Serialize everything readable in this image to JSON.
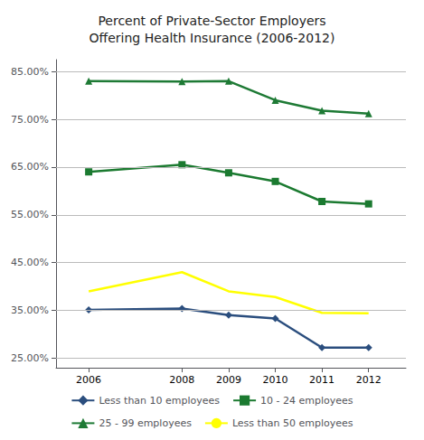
{
  "chart_data": {
    "type": "line",
    "title": "Percent of Private-Sector Employers\nOffering Health Insurance (2006-2012)",
    "x": [
      2006,
      2008,
      2009,
      2010,
      2011,
      2012
    ],
    "series": [
      {
        "name": "Less than 10 employees",
        "color": "#2B4E7E",
        "marker": "diamond",
        "values": [
          0.351,
          0.354,
          0.34,
          0.333,
          0.272,
          0.272
        ]
      },
      {
        "name": "10 - 24 employees",
        "color": "#1B7A30",
        "marker": "square",
        "values": [
          0.64,
          0.655,
          0.638,
          0.62,
          0.578,
          0.573
        ]
      },
      {
        "name": "25 - 99 employees",
        "color": "#1E7A35",
        "marker": "triangle",
        "values": [
          0.83,
          0.829,
          0.83,
          0.79,
          0.768,
          0.762
        ]
      },
      {
        "name": "Less than 50 employees",
        "color": "#FFFF00",
        "marker": "none",
        "values": [
          0.39,
          0.43,
          0.39,
          0.378,
          0.345,
          0.344
        ]
      }
    ],
    "xlim": [
      2005.3,
      2012.8
    ],
    "xticks": [
      2006,
      2008,
      2009,
      2010,
      2011,
      2012
    ],
    "ylim": [
      0.23,
      0.875
    ],
    "yticks": [
      {
        "value": 0.25,
        "label": "25.00%"
      },
      {
        "value": 0.35,
        "label": "35.00%"
      },
      {
        "value": 0.45,
        "label": "45.00%"
      },
      {
        "value": 0.55,
        "label": "55.00%"
      },
      {
        "value": 0.65,
        "label": "65.00%"
      },
      {
        "value": 0.75,
        "label": "75.00%"
      },
      {
        "value": 0.85,
        "label": "85.00%"
      }
    ],
    "grid": true,
    "legend": "bottom"
  }
}
